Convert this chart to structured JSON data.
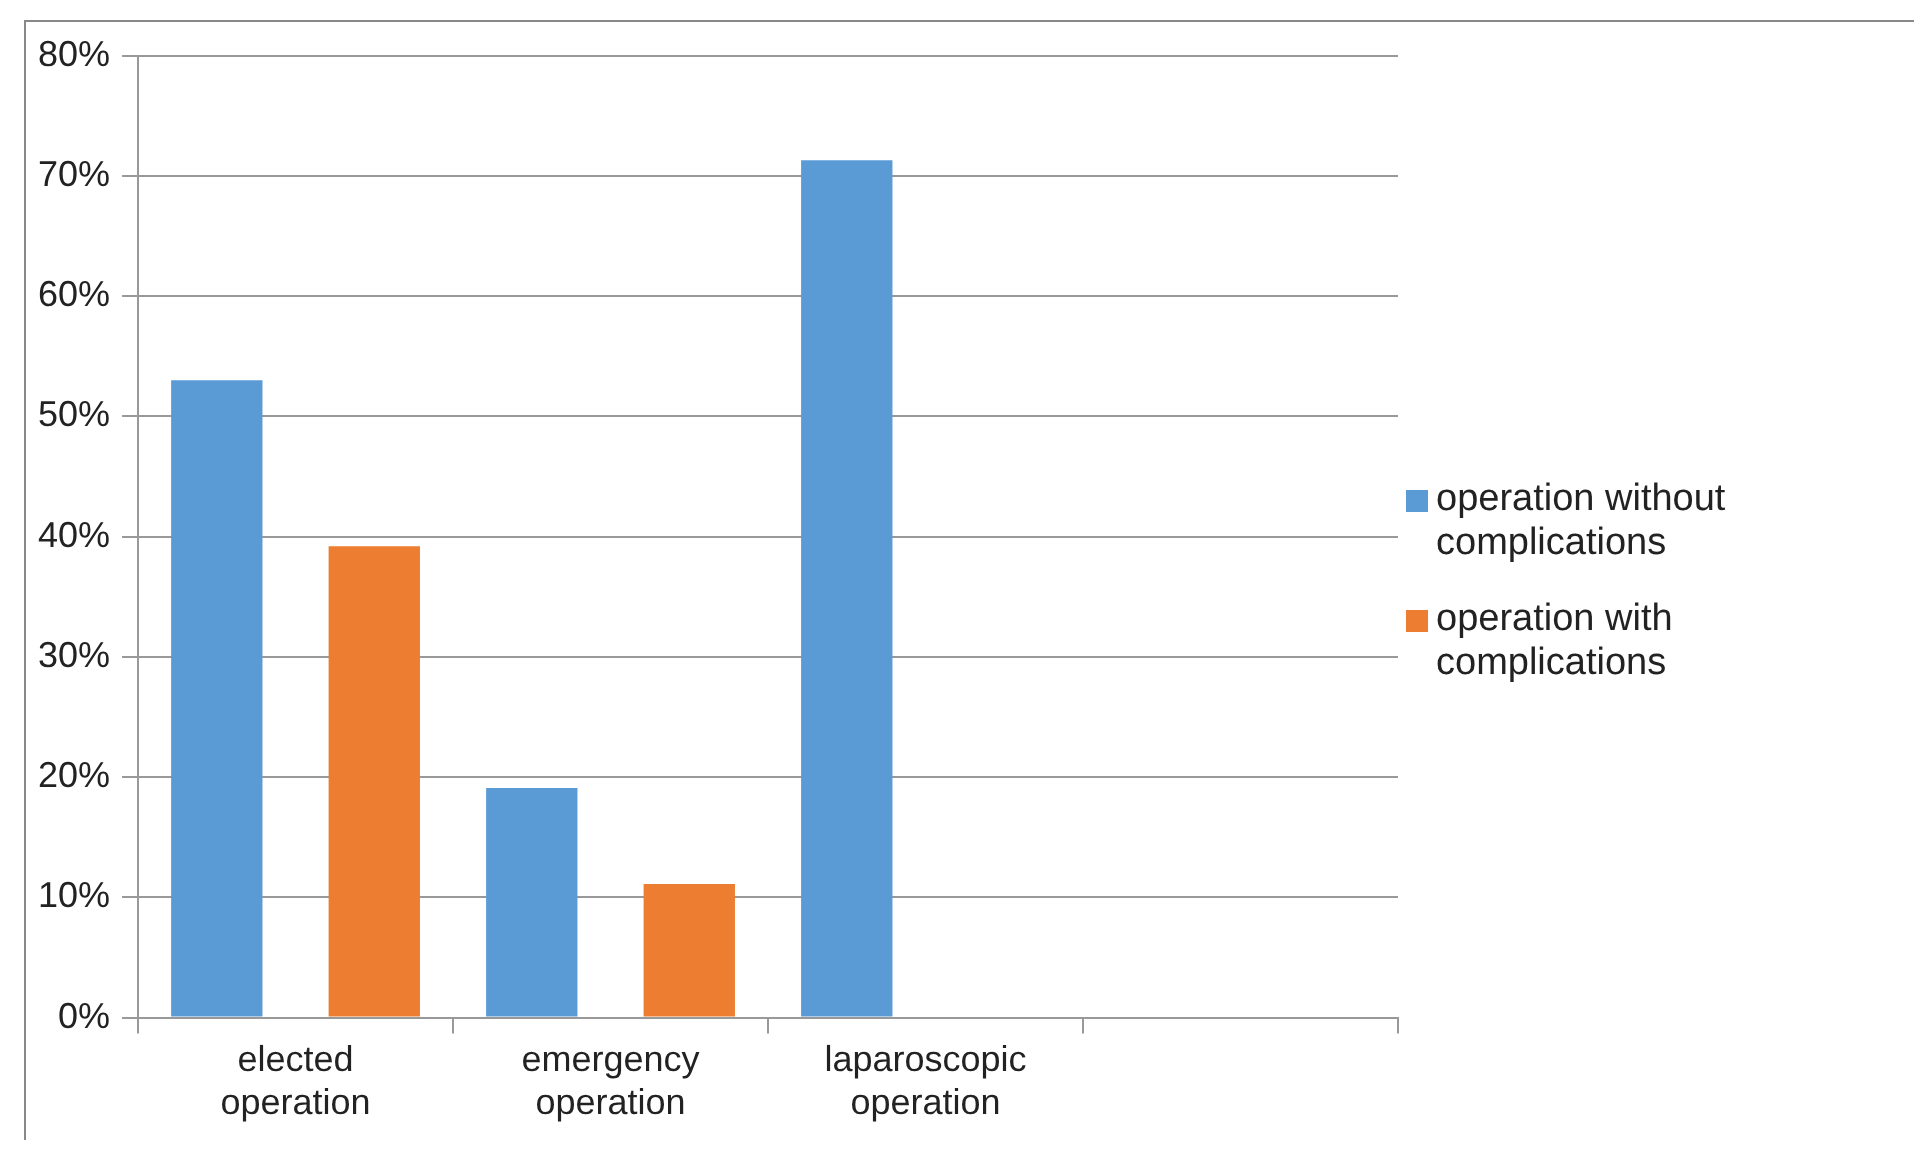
{
  "chart_data": {
    "type": "bar",
    "categories": [
      "elected operation",
      "emergency operation",
      "laparoscopic operation",
      null
    ],
    "series": [
      {
        "name": "operation without complications",
        "color": "#5b9bd5",
        "values": [
          53.0,
          19.1,
          71.3,
          null
        ]
      },
      {
        "name": "operation with complications",
        "color": "#ed7d31",
        "values": [
          39.2,
          11.1,
          null,
          null
        ]
      }
    ],
    "ylim": [
      0,
      80
    ],
    "yticks": [
      {
        "value": 0,
        "label": "0%"
      },
      {
        "value": 10,
        "label": "10%"
      },
      {
        "value": 20,
        "label": "20%"
      },
      {
        "value": 30,
        "label": "30%"
      },
      {
        "value": 40,
        "label": "40%"
      },
      {
        "value": 50,
        "label": "50%"
      },
      {
        "value": 60,
        "label": "60%"
      },
      {
        "value": 70,
        "label": "70%"
      },
      {
        "value": 80,
        "label": "80%"
      }
    ],
    "grid": "y",
    "legend": "right"
  }
}
